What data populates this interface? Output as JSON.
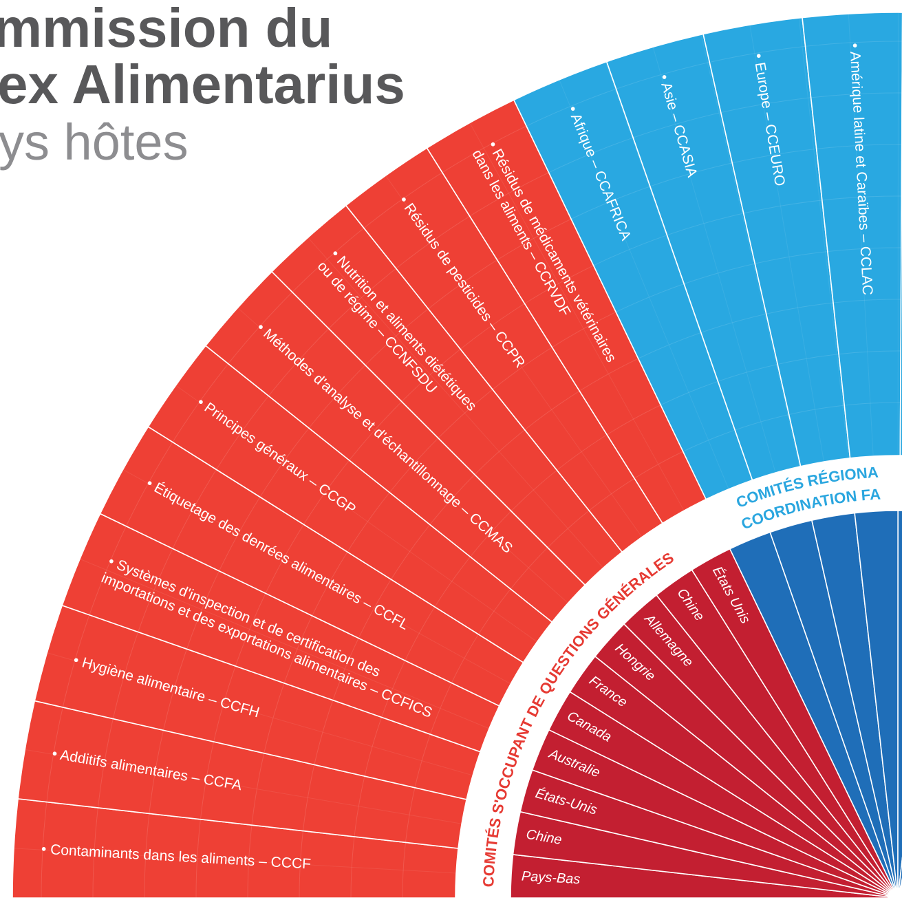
{
  "title": {
    "lines": [
      "mmission du",
      "ex Alimentarius"
    ],
    "subtitle": "ys hôtes"
  },
  "ring_labels": {
    "general": "COMITÉS S'OCCUPANT DE QUESTIONS GÉNÉRALES",
    "regional": [
      "COMITÉS RÉGIONA",
      "COORDINATION FA"
    ]
  },
  "general_committees": [
    {
      "lines": [
        "• Contaminants dans les aliments – CCCF"
      ]
    },
    {
      "lines": [
        "• Additifs alimentaires  – CCFA"
      ]
    },
    {
      "lines": [
        "• Hygiène alimentaire – CCFH"
      ]
    },
    {
      "lines": [
        "• Systèmes d'inspection et de certification des",
        "importations et des exportations alimentaires – CCFICS"
      ]
    },
    {
      "lines": [
        "• Étiquetage des denrées alimentaires – CCFL"
      ]
    },
    {
      "lines": [
        "• Principes généraux  – CCGP"
      ]
    },
    {
      "lines": [
        "• Méthodes d'analyse et d'échantillonnage – CCMAS"
      ]
    },
    {
      "lines": [
        "• Nutrition et aliments diététiques",
        "ou de régime – CCNFSDU"
      ]
    },
    {
      "lines": [
        "• Résidus de pesticides – CCPR"
      ]
    },
    {
      "lines": [
        "• Résidus de médicaments vétérinaires",
        "dans les aliments – CCRVDF"
      ]
    }
  ],
  "general_hosts": [
    "Pays-Bas",
    "Chine",
    "États-Unis",
    "Australie",
    "Canada",
    "France",
    "Hongrie",
    "Allemagne",
    "Chine",
    "États Unis"
  ],
  "regional_committees": [
    {
      "lines": [
        "• Afrique – CCAFRICA"
      ]
    },
    {
      "lines": [
        "• Asie – CCASIA"
      ]
    },
    {
      "lines": [
        "• Europe – CCEURO"
      ]
    },
    {
      "lines": [
        "• Amérique latine et Caraïbes – CCLAC"
      ]
    }
  ]
}
